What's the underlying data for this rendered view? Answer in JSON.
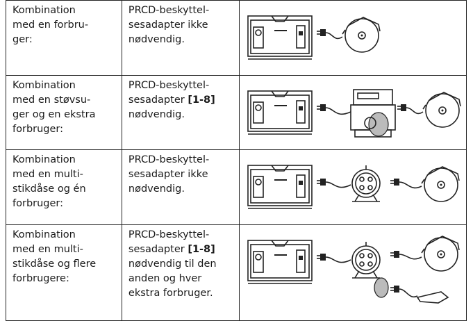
{
  "table": {
    "rows": [
      {
        "condition": [
          "Kombination",
          "med en forbru-",
          "ger:"
        ],
        "requirement": [
          [
            "PRCD-beskyttel-"
          ],
          [
            "sesadapter ikke"
          ],
          [
            "nødvendig."
          ]
        ]
      },
      {
        "condition": [
          "Kombination",
          "med en støvsu-",
          "ger og en ekstra",
          "forbruger:"
        ],
        "requirement": [
          [
            "PRCD-beskyttel-"
          ],
          [
            "sesadapter ",
            {
              "text": "[1-8]",
              "bold": true
            }
          ],
          [
            "nødvendig."
          ]
        ]
      },
      {
        "condition": [
          "Kombination",
          "med en multi-",
          "stikdåse og én",
          "forbruger:"
        ],
        "requirement": [
          [
            "PRCD-beskyttel-"
          ],
          [
            "sesadapter ikke"
          ],
          [
            "nødvendig."
          ]
        ]
      },
      {
        "condition": [
          "Kombination",
          "med en multi-",
          "stikdåse og flere",
          "forbrugere:"
        ],
        "requirement": [
          [
            "PRCD-beskyttel-"
          ],
          [
            "sesadapter ",
            {
              "text": "[1-8]",
              "bold": true
            }
          ],
          [
            "nødvendig til den"
          ],
          [
            "anden og hver"
          ],
          [
            "ekstra forbruger."
          ]
        ]
      }
    ]
  }
}
